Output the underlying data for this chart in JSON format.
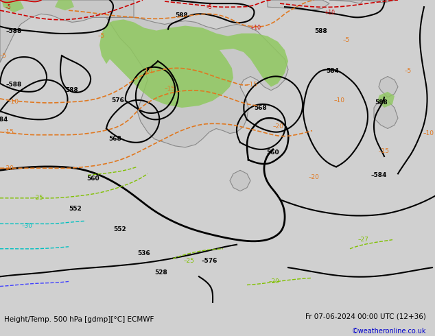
{
  "title_left": "Height/Temp. 500 hPa [gdmp][°C] ECMWF",
  "title_right": "Fr 07-06-2024 00:00 UTC (12+36)",
  "credit": "©weatheronline.co.uk",
  "bg_color": "#d0d0d0",
  "land_color": "#c8c8c8",
  "green_fill_color": "#90c860",
  "bottom_bar_color": "#e8e8e8",
  "title_color": "#000000",
  "credit_color": "#0000cc",
  "figwidth": 6.34,
  "figheight": 4.9,
  "dpi": 100
}
